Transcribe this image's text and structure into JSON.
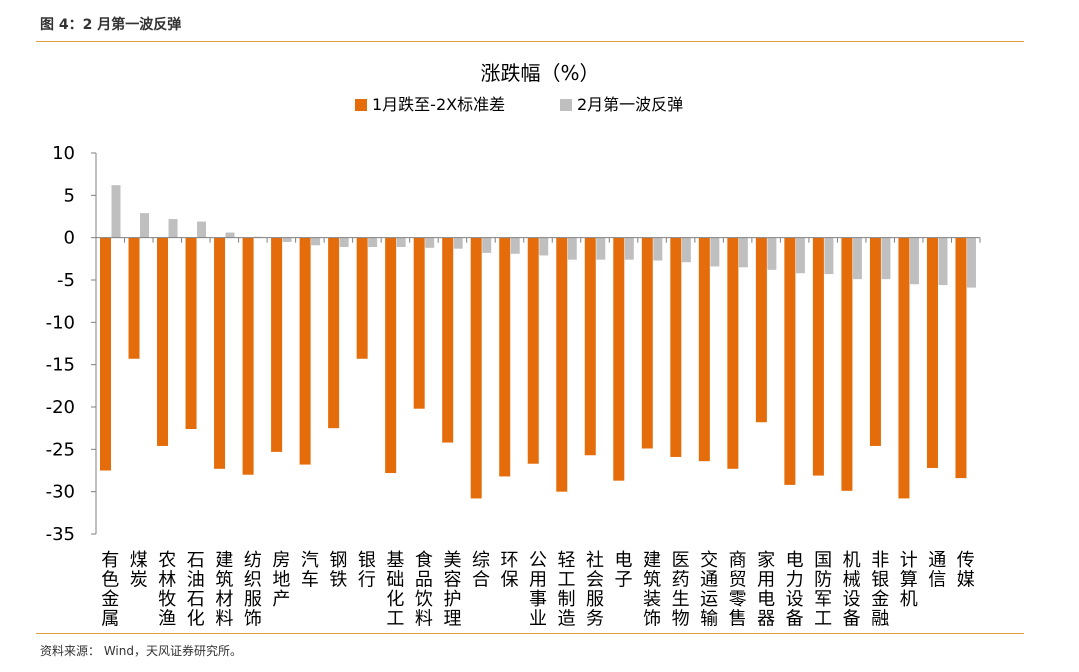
{
  "figure_caption": "图 4：2 月第一波反弹",
  "source_note": "资料来源： Wind，天风证券研究所。",
  "colors": {
    "series1": "#E46C0A",
    "series2": "#BFBFBF",
    "rule": "#E2A044"
  },
  "chart_data": {
    "type": "bar",
    "title": "涨跌幅（%）",
    "legend_position": "top-center",
    "grid": false,
    "ylim": [
      -35,
      10
    ],
    "yticks": [
      10,
      5,
      0,
      -5,
      -10,
      -15,
      -20,
      -25,
      -30,
      -35
    ],
    "categories": [
      "有色金属",
      "煤炭",
      "农林牧渔",
      "石油石化",
      "建筑材料",
      "纺织服饰",
      "房地产",
      "汽车",
      "钢铁",
      "银行",
      "基础化工",
      "食品饮料",
      "美容护理",
      "综合",
      "环保",
      "公用事业",
      "轻工制造",
      "社会服务",
      "电子",
      "建筑装饰",
      "医药生物",
      "交通运输",
      "商贸零售",
      "家用电器",
      "电力设备",
      "国防军工",
      "机械设备",
      "非银金融",
      "计算机",
      "通信",
      "传媒"
    ],
    "series": [
      {
        "name": "1月跌至-2X标准差",
        "values": [
          -27.5,
          -14.3,
          -24.6,
          -22.6,
          -27.3,
          -28.0,
          -25.3,
          -26.8,
          -22.5,
          -14.3,
          -27.8,
          -20.2,
          -24.2,
          -30.8,
          -28.2,
          -26.7,
          -30.0,
          -25.7,
          -28.7,
          -24.9,
          -25.9,
          -26.4,
          -27.3,
          -21.8,
          -29.2,
          -28.1,
          -29.9,
          -24.6,
          -30.8,
          -27.2,
          -28.4
        ]
      },
      {
        "name": "2月第一波反弹",
        "values": [
          6.2,
          2.9,
          2.2,
          1.9,
          0.6,
          0.1,
          -0.5,
          -0.9,
          -1.1,
          -1.1,
          -1.1,
          -1.2,
          -1.3,
          -1.8,
          -1.9,
          -2.1,
          -2.6,
          -2.6,
          -2.6,
          -2.7,
          -2.9,
          -3.4,
          -3.5,
          -3.8,
          -4.2,
          -4.3,
          -4.9,
          -4.9,
          -5.5,
          -5.6,
          -5.9
        ]
      }
    ]
  }
}
